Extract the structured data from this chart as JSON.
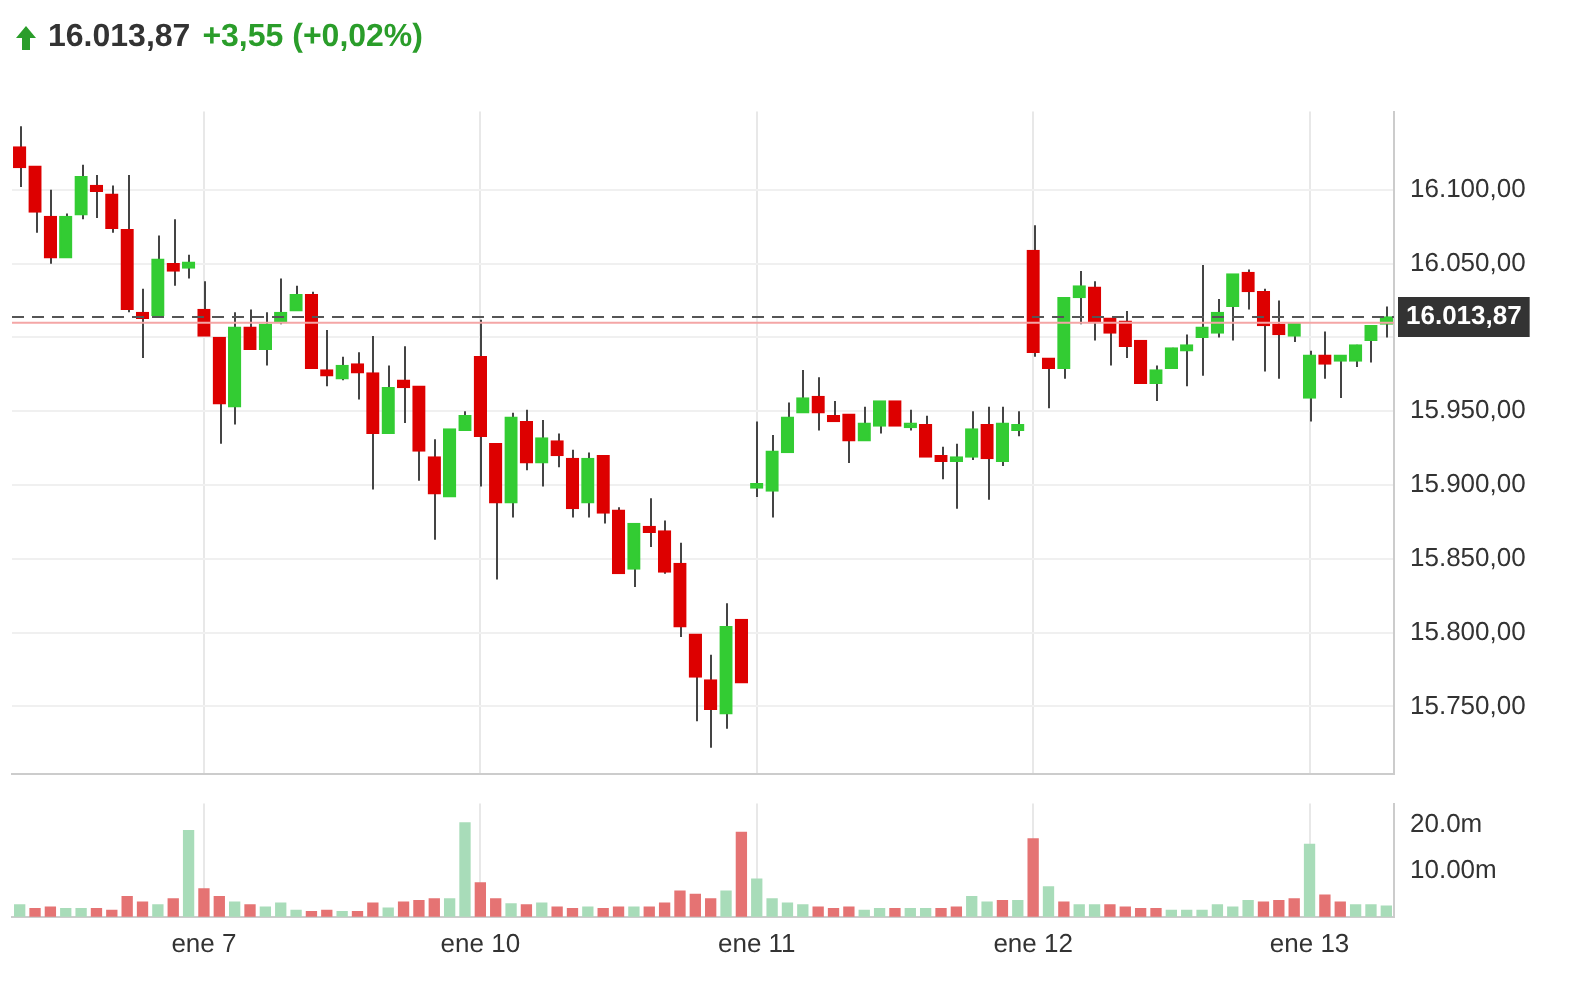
{
  "chart_data": [
    {
      "type": "candlestick",
      "title": "16.013,87",
      "subtitle": "+3,55 (+0,02%)",
      "categories": [
        null,
        null,
        null,
        null,
        null,
        null,
        null,
        null,
        null,
        null,
        null,
        null,
        null,
        null,
        null,
        null,
        null,
        null,
        null,
        null,
        null,
        null,
        null,
        null,
        null,
        null,
        null,
        null,
        null,
        null,
        null,
        null,
        null,
        null,
        null,
        null,
        null,
        null,
        null,
        null,
        null,
        null,
        null,
        null,
        null,
        null,
        null,
        null,
        null,
        null,
        null,
        null,
        null,
        null,
        null,
        null,
        null,
        null,
        null,
        null,
        null,
        null,
        null,
        null,
        null,
        null,
        null,
        null,
        null,
        null,
        null,
        null,
        null,
        null,
        null,
        null,
        null,
        null,
        null,
        null,
        null,
        null,
        null,
        null,
        null,
        null,
        null,
        null,
        null,
        null
      ],
      "ohlc": [
        [
          16129,
          16143,
          16102,
          16115
        ],
        [
          16116,
          16116,
          16071,
          16085
        ],
        [
          16082,
          16100,
          16050,
          16054
        ],
        [
          16054,
          16084,
          16054,
          16082
        ],
        [
          16083,
          16117,
          16080,
          16109
        ],
        [
          16103,
          16110,
          16081,
          16099
        ],
        [
          16097,
          16103,
          16071,
          16074
        ],
        [
          16073,
          16110,
          16017,
          16019
        ],
        [
          16017,
          16033,
          15986,
          16013
        ],
        [
          16015,
          16069,
          16015,
          16053
        ],
        [
          16050,
          16080,
          16035,
          16045
        ],
        [
          16047,
          16056,
          16040,
          16051
        ],
        [
          16019,
          16038,
          16001,
          16001
        ],
        [
          16000,
          16000,
          15928,
          15955
        ],
        [
          15953,
          16017,
          15941,
          16007
        ],
        [
          16007,
          16019,
          15992,
          15992
        ],
        [
          15992,
          16017,
          15981,
          16009
        ],
        [
          16010,
          16040,
          16009,
          16017
        ],
        [
          16018,
          16035,
          16018,
          16029
        ],
        [
          16029,
          16031,
          15979,
          15979
        ],
        [
          15978,
          16005,
          15967,
          15974
        ],
        [
          15972,
          15987,
          15971,
          15981
        ],
        [
          15982,
          15990,
          15958,
          15976
        ],
        [
          15976,
          16001,
          15897,
          15935
        ],
        [
          15935,
          15981,
          15935,
          15966
        ],
        [
          15971,
          15994,
          15942,
          15966
        ],
        [
          15967,
          15967,
          15903,
          15923
        ],
        [
          15919,
          15931,
          15863,
          15894
        ],
        [
          15892,
          15938,
          15892,
          15938
        ],
        [
          15937,
          15950,
          15937,
          15947
        ],
        [
          15987,
          16012,
          15899,
          15933
        ],
        [
          15928,
          15928,
          15836,
          15888
        ],
        [
          15888,
          15949,
          15878,
          15946
        ],
        [
          15943,
          15951,
          15910,
          15915
        ],
        [
          15915,
          15944,
          15899,
          15932
        ],
        [
          15930,
          15935,
          15912,
          15920
        ],
        [
          15918,
          15924,
          15878,
          15884
        ],
        [
          15888,
          15922,
          15878,
          15918
        ],
        [
          15920,
          15920,
          15874,
          15881
        ],
        [
          15883,
          15885,
          15840,
          15840
        ],
        [
          15843,
          15874,
          15831,
          15874
        ],
        [
          15872,
          15891,
          15858,
          15868
        ],
        [
          15869,
          15876,
          15840,
          15841
        ],
        [
          15847,
          15861,
          15797,
          15804
        ],
        [
          15799,
          15799,
          15740,
          15770
        ],
        [
          15768,
          15785,
          15722,
          15748
        ],
        [
          15745,
          15820,
          15735,
          15804
        ],
        [
          15809,
          15809,
          15766,
          15766
        ],
        [
          15898,
          15943,
          15892,
          15901
        ],
        [
          15896,
          15934,
          15878,
          15923
        ],
        [
          15922,
          15956,
          15922,
          15946
        ],
        [
          15949,
          15978,
          15949,
          15959
        ],
        [
          15960,
          15973,
          15937,
          15949
        ],
        [
          15947,
          15957,
          15943,
          15943
        ],
        [
          15948,
          15948,
          15915,
          15930
        ],
        [
          15930,
          15953,
          15930,
          15942
        ],
        [
          15940,
          15957,
          15935,
          15957
        ],
        [
          15957,
          15957,
          15940,
          15940
        ],
        [
          15939,
          15951,
          15937,
          15942
        ],
        [
          15941,
          15947,
          15919,
          15919
        ],
        [
          15920,
          15926,
          15904,
          15916
        ],
        [
          15916,
          15928,
          15884,
          15919
        ],
        [
          15919,
          15950,
          15917,
          15938
        ],
        [
          15941,
          15953,
          15890,
          15918
        ],
        [
          15916,
          15953,
          15913,
          15942
        ],
        [
          15937,
          15950,
          15933,
          15941
        ],
        [
          16059,
          16076,
          15987,
          15990
        ],
        [
          15986,
          15986,
          15952,
          15979
        ],
        [
          15979,
          16027,
          15972,
          16027
        ],
        [
          16027,
          16045,
          16009,
          16035
        ],
        [
          16034,
          16038,
          15998,
          16010
        ],
        [
          16013,
          16013,
          15981,
          16003
        ],
        [
          16011,
          16018,
          15986,
          15994
        ],
        [
          15998,
          15998,
          15969,
          15969
        ],
        [
          15969,
          15981,
          15957,
          15978
        ],
        [
          15979,
          15993,
          15979,
          15993
        ],
        [
          15991,
          16002,
          15967,
          15995
        ],
        [
          16000,
          16049,
          15974,
          16007
        ],
        [
          16003,
          16026,
          16000,
          16017
        ],
        [
          16021,
          16043,
          15998,
          16043
        ],
        [
          16044,
          16046,
          16019,
          16031
        ],
        [
          16031,
          16033,
          15977,
          16008
        ],
        [
          16009,
          16025,
          15972,
          16002
        ],
        [
          16001,
          16010,
          15997,
          16010
        ],
        [
          15959,
          15991,
          15943,
          15988
        ],
        [
          15988,
          16004,
          15972,
          15982
        ],
        [
          15984,
          15988,
          15959,
          15988
        ],
        [
          15984,
          15995,
          15980,
          15995
        ],
        [
          15998,
          16008,
          15983,
          16008
        ],
        [
          16009,
          16021,
          16000,
          16013.87
        ]
      ],
      "colors": [
        "#dd0000",
        "#dd0000",
        "#dd0000",
        "#33cc33",
        "#33cc33",
        "#dd0000",
        "#dd0000",
        "#dd0000",
        "#dd0000",
        "#33cc33",
        "#dd0000",
        "#33cc33",
        "#dd0000",
        "#dd0000",
        "#33cc33",
        "#dd0000",
        "#33cc33",
        "#33cc33",
        "#33cc33",
        "#dd0000",
        "#dd0000",
        "#33cc33",
        "#dd0000",
        "#dd0000",
        "#33cc33",
        "#dd0000",
        "#dd0000",
        "#dd0000",
        "#33cc33",
        "#33cc33",
        "#dd0000",
        "#dd0000",
        "#33cc33",
        "#dd0000",
        "#33cc33",
        "#dd0000",
        "#dd0000",
        "#33cc33",
        "#dd0000",
        "#dd0000",
        "#33cc33",
        "#dd0000",
        "#dd0000",
        "#dd0000",
        "#dd0000",
        "#dd0000",
        "#33cc33",
        "#dd0000",
        "#33cc33",
        "#33cc33",
        "#33cc33",
        "#33cc33",
        "#dd0000",
        "#dd0000",
        "#dd0000",
        "#33cc33",
        "#33cc33",
        "#dd0000",
        "#33cc33",
        "#dd0000",
        "#dd0000",
        "#33cc33",
        "#33cc33",
        "#dd0000",
        "#33cc33",
        "#33cc33",
        "#dd0000",
        "#dd0000",
        "#33cc33",
        "#33cc33",
        "#dd0000",
        "#dd0000",
        "#dd0000",
        "#dd0000",
        "#33cc33",
        "#33cc33",
        "#33cc33",
        "#33cc33",
        "#33cc33",
        "#33cc33",
        "#dd0000",
        "#dd0000",
        "#dd0000",
        "#33cc33",
        "#33cc33",
        "#dd0000",
        "#33cc33",
        "#33cc33",
        "#33cc33",
        "#33cc33"
      ],
      "ylim": [
        15704,
        16153
      ],
      "yticks": [
        {
          "value": 15750,
          "label": "15.750,00"
        },
        {
          "value": 15800,
          "label": "15.800,00"
        },
        {
          "value": 15850,
          "label": "15.850,00"
        },
        {
          "value": 15900,
          "label": "15.900,00"
        },
        {
          "value": 15950,
          "label": "15.950,00"
        },
        {
          "value": 16000,
          "label": null
        },
        {
          "value": 16050,
          "label": "16.050,00"
        },
        {
          "value": 16100,
          "label": "16.100,00"
        }
      ],
      "ref_lines": [
        {
          "axis": "y",
          "value": 16010,
          "color": "#f4a6a6",
          "line_style": "solid"
        },
        {
          "axis": "y",
          "value": 16013.87,
          "label": "16.013,87",
          "color": "#555555",
          "line_style": "dashed"
        }
      ],
      "grid": true,
      "tick_labels": "y"
    },
    {
      "type": "bar",
      "categories": [
        null,
        null,
        null,
        null,
        null,
        null,
        null,
        null,
        null,
        null,
        null,
        null,
        "ene 7",
        null,
        null,
        null,
        null,
        null,
        null,
        null,
        null,
        null,
        null,
        null,
        null,
        null,
        null,
        null,
        null,
        null,
        "ene 10",
        null,
        null,
        null,
        null,
        null,
        null,
        null,
        null,
        null,
        null,
        null,
        null,
        null,
        null,
        null,
        null,
        null,
        "ene 11",
        null,
        null,
        null,
        null,
        null,
        null,
        null,
        null,
        null,
        null,
        null,
        null,
        null,
        null,
        null,
        null,
        null,
        "ene 12",
        null,
        null,
        null,
        null,
        null,
        null,
        null,
        null,
        null,
        null,
        null,
        null,
        null,
        null,
        null,
        null,
        null,
        "ene 13",
        null,
        null,
        null,
        null,
        null
      ],
      "values": [
        2.6,
        1.8,
        2.1,
        1.8,
        1.8,
        1.8,
        1.4,
        4.4,
        3.2,
        2.6,
        3.9,
        18.8,
        6.1,
        4.4,
        3.2,
        2.6,
        2.1,
        3.0,
        1.4,
        1.1,
        1.4,
        1.1,
        1.1,
        3.0,
        1.9,
        3.2,
        3.5,
        3.9,
        3.9,
        20.5,
        7.4,
        3.9,
        2.8,
        2.6,
        3.0,
        2.1,
        1.8,
        2.1,
        1.8,
        2.1,
        2.1,
        2.1,
        3.0,
        5.6,
        4.9,
        3.9,
        5.6,
        18.4,
        8.2,
        3.9,
        3.0,
        2.6,
        2.1,
        1.8,
        2.1,
        1.4,
        1.8,
        1.8,
        1.8,
        1.8,
        1.8,
        2.1,
        4.4,
        3.2,
        3.5,
        3.5,
        17.0,
        6.5,
        3.2,
        2.6,
        2.6,
        2.6,
        2.1,
        1.8,
        1.8,
        1.4,
        1.4,
        1.4,
        2.6,
        2.1,
        3.5,
        3.2,
        3.5,
        3.9,
        15.8,
        4.7,
        3.2,
        2.6,
        2.6,
        2.3
      ],
      "colors": [
        "#a8dcb9",
        "#e57373",
        "#e57373",
        "#a8dcb9",
        "#a8dcb9",
        "#e57373",
        "#e57373",
        "#e57373",
        "#e57373",
        "#a8dcb9",
        "#e57373",
        "#a8dcb9",
        "#e57373",
        "#e57373",
        "#a8dcb9",
        "#e57373",
        "#a8dcb9",
        "#a8dcb9",
        "#a8dcb9",
        "#e57373",
        "#e57373",
        "#a8dcb9",
        "#e57373",
        "#e57373",
        "#a8dcb9",
        "#e57373",
        "#e57373",
        "#e57373",
        "#a8dcb9",
        "#a8dcb9",
        "#e57373",
        "#e57373",
        "#a8dcb9",
        "#e57373",
        "#a8dcb9",
        "#e57373",
        "#e57373",
        "#a8dcb9",
        "#e57373",
        "#e57373",
        "#a8dcb9",
        "#e57373",
        "#e57373",
        "#e57373",
        "#e57373",
        "#e57373",
        "#a8dcb9",
        "#e57373",
        "#a8dcb9",
        "#a8dcb9",
        "#a8dcb9",
        "#a8dcb9",
        "#e57373",
        "#e57373",
        "#e57373",
        "#a8dcb9",
        "#a8dcb9",
        "#e57373",
        "#a8dcb9",
        "#a8dcb9",
        "#e57373",
        "#e57373",
        "#a8dcb9",
        "#a8dcb9",
        "#e57373",
        "#a8dcb9",
        "#e57373",
        "#a8dcb9",
        "#e57373",
        "#a8dcb9",
        "#a8dcb9",
        "#e57373",
        "#e57373",
        "#e57373",
        "#e57373",
        "#a8dcb9",
        "#a8dcb9",
        "#a8dcb9",
        "#a8dcb9",
        "#a8dcb9",
        "#a8dcb9",
        "#e57373",
        "#e57373",
        "#e57373",
        "#a8dcb9",
        "#e57373",
        "#e57373",
        "#a8dcb9",
        "#a8dcb9",
        "#a8dcb9"
      ],
      "ylim": [
        0,
        24.7
      ],
      "yticks": [
        {
          "value": 10,
          "label": "10.00m"
        },
        {
          "value": 20,
          "label": "20.0m"
        }
      ],
      "grid": "x"
    }
  ]
}
